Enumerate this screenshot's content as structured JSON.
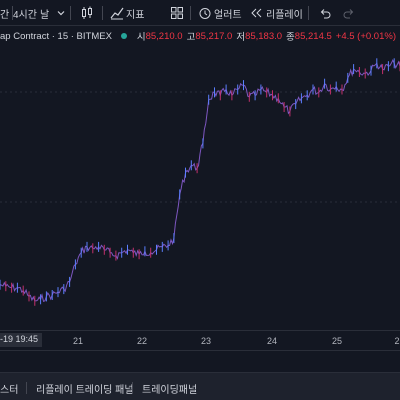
{
  "toolbar": {
    "frag_label": "간",
    "interval_label": "4시간",
    "day_label": "날",
    "indicators_label": "지표",
    "alert_label": "얼러트",
    "replay_label": "리플레이"
  },
  "legend": {
    "symbol": "ap Contract · 15 · BITMEX",
    "open_key": "시",
    "open_val": "85,210.0",
    "high_key": "고",
    "high_val": "85,217.0",
    "low_key": "저",
    "low_val": "85,183.0",
    "close_key": "종",
    "close_val": "85,214.5",
    "change": "+4.5 (+0.01%)"
  },
  "time_axis": {
    "cursor_label": "-19  19:45",
    "ticks": [
      "21",
      "22",
      "23",
      "24",
      "25",
      "2"
    ]
  },
  "bottom_panel": {
    "tab_screener": "스터",
    "tab_replay_trading": "리플레이 트레이딩 패널",
    "tab_trading": "트레이딩패널"
  },
  "colors": {
    "background": "#131722",
    "up": "#26a69a",
    "down": "#f23645",
    "line": "#7e57c2",
    "accent": "#2962ff"
  },
  "chart_data": {
    "type": "line",
    "title": "",
    "xlabel": "",
    "ylabel": "",
    "x_ticks": [
      "21",
      "22",
      "23",
      "24",
      "25"
    ],
    "series": [
      {
        "values": [
          48,
          47,
          46,
          46,
          44,
          40,
          37,
          38,
          40,
          41,
          43,
          45,
          50,
          62,
          70,
          74,
          73,
          74,
          72,
          70,
          68,
          70,
          72,
          70,
          69,
          71,
          70,
          72,
          74,
          75,
          80,
          110,
          125,
          130,
          128,
          145,
          175,
          180,
          178,
          182,
          178,
          182,
          185,
          177,
          178,
          182,
          180,
          178,
          176,
          170,
          167,
          172,
          176,
          178,
          182,
          180,
          186,
          182,
          184,
          182,
          190,
          196,
          194,
          193,
          195,
          200,
          196,
          198,
          200,
          198
        ]
      }
    ]
  }
}
